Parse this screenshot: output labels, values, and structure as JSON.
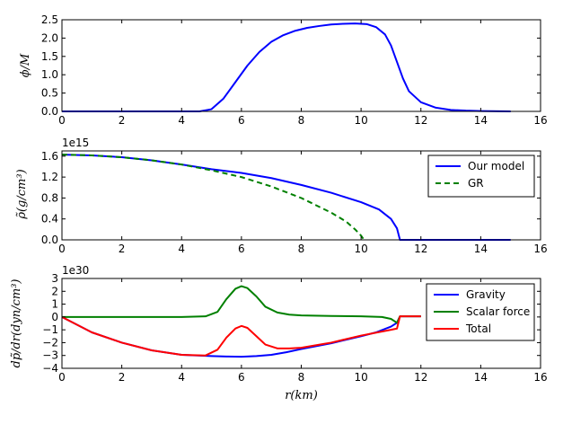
{
  "chart_data": [
    {
      "type": "line",
      "id": "phi",
      "ylabel": "ϕ/M",
      "xlim": [
        0,
        16
      ],
      "ylim": [
        0,
        2.5
      ],
      "xticks": [
        "0",
        "2",
        "4",
        "6",
        "8",
        "10",
        "12",
        "14",
        "16"
      ],
      "yticks": [
        "0.0",
        "0.5",
        "1.0",
        "1.5",
        "2.0",
        "2.5"
      ],
      "offset_text": "",
      "legend": null,
      "series": [
        {
          "color": "#0000ff",
          "dash": "solid",
          "x": [
            0,
            4.6,
            5.0,
            5.4,
            5.8,
            6.2,
            6.6,
            7.0,
            7.4,
            7.8,
            8.2,
            8.6,
            9.0,
            9.4,
            9.8,
            10.2,
            10.5,
            10.8,
            11.0,
            11.2,
            11.4,
            11.6,
            12.0,
            12.5,
            13.0,
            13.5,
            14.0,
            15.0
          ],
          "y": [
            0,
            0.0,
            0.06,
            0.35,
            0.8,
            1.25,
            1.62,
            1.9,
            2.08,
            2.2,
            2.28,
            2.33,
            2.37,
            2.39,
            2.4,
            2.38,
            2.3,
            2.1,
            1.8,
            1.35,
            0.9,
            0.55,
            0.25,
            0.1,
            0.04,
            0.02,
            0.01,
            0.0
          ]
        }
      ]
    },
    {
      "type": "line",
      "id": "rho",
      "ylabel": "ρ̃(g/cm³)",
      "xlim": [
        0,
        16
      ],
      "ylim": [
        0,
        1.7
      ],
      "xticks": [
        "0",
        "2",
        "4",
        "6",
        "8",
        "10",
        "12",
        "14",
        "16"
      ],
      "yticks": [
        "0.0",
        "0.4",
        "0.8",
        "1.2",
        "1.6"
      ],
      "offset_text": "1e15",
      "legend": "upper right",
      "series": [
        {
          "name": "Our model",
          "color": "#0000ff",
          "dash": "solid",
          "x": [
            0,
            1,
            2,
            3,
            4,
            5,
            6,
            7,
            8,
            9,
            10,
            10.6,
            11.0,
            11.2,
            11.3,
            12,
            13,
            14,
            15
          ],
          "y": [
            1.63,
            1.615,
            1.58,
            1.52,
            1.44,
            1.35,
            1.28,
            1.18,
            1.05,
            0.9,
            0.72,
            0.58,
            0.4,
            0.22,
            0.0,
            0.0,
            0.0,
            0.0,
            0.0
          ]
        },
        {
          "name": "GR",
          "color": "#008000",
          "dash": "dashed",
          "x": [
            0,
            1,
            2,
            3,
            4,
            5,
            6,
            7,
            8,
            9,
            9.5,
            9.8,
            10.0,
            10.1
          ],
          "y": [
            1.63,
            1.615,
            1.58,
            1.52,
            1.44,
            1.33,
            1.2,
            1.02,
            0.8,
            0.52,
            0.35,
            0.2,
            0.08,
            0.0
          ]
        }
      ]
    },
    {
      "type": "line",
      "id": "dpdr",
      "ylabel": "dp̃/dr(dyn/cm³)",
      "xlabel": "r(km)",
      "xlim": [
        0,
        16
      ],
      "ylim": [
        -4,
        3
      ],
      "xticks": [
        "0",
        "2",
        "4",
        "6",
        "8",
        "10",
        "12",
        "14",
        "16"
      ],
      "yticks": [
        "−4",
        "−3",
        "−2",
        "−1",
        "0",
        "1",
        "2",
        "3"
      ],
      "offset_text": "1e30",
      "legend": "upper right",
      "series": [
        {
          "name": "Gravity",
          "color": "#0000ff",
          "dash": "solid",
          "x": [
            0,
            1,
            2,
            3,
            4,
            5,
            5.5,
            6,
            6.5,
            7,
            7.5,
            8,
            9,
            10,
            10.5,
            11.0,
            11.2,
            11.3,
            12.0
          ],
          "y": [
            0,
            -1.2,
            -2.0,
            -2.6,
            -2.95,
            -3.05,
            -3.08,
            -3.1,
            -3.05,
            -2.95,
            -2.75,
            -2.5,
            -2.05,
            -1.5,
            -1.2,
            -0.75,
            -0.45,
            0.05,
            0.05
          ]
        },
        {
          "name": "Scalar force",
          "color": "#008000",
          "dash": "solid",
          "x": [
            0,
            2,
            4,
            4.8,
            5.2,
            5.5,
            5.8,
            6.0,
            6.2,
            6.5,
            6.8,
            7.2,
            7.6,
            8,
            9,
            10,
            10.7,
            11.0,
            11.2,
            11.3,
            12.0
          ],
          "y": [
            0,
            0,
            0.0,
            0.05,
            0.4,
            1.4,
            2.2,
            2.4,
            2.25,
            1.6,
            0.8,
            0.35,
            0.18,
            0.12,
            0.08,
            0.05,
            0.0,
            -0.15,
            -0.45,
            0.05,
            0.05
          ]
        },
        {
          "name": "Total",
          "color": "#ff0000",
          "dash": "solid",
          "x": [
            0,
            1,
            2,
            3,
            4,
            4.8,
            5.2,
            5.5,
            5.8,
            6.0,
            6.2,
            6.5,
            6.8,
            7.2,
            7.6,
            8,
            9,
            10,
            11.0,
            11.2,
            11.3,
            12.0
          ],
          "y": [
            0,
            -1.2,
            -2.0,
            -2.6,
            -2.95,
            -3.0,
            -2.55,
            -1.6,
            -0.9,
            -0.7,
            -0.85,
            -1.5,
            -2.15,
            -2.45,
            -2.45,
            -2.4,
            -2.0,
            -1.45,
            -1.0,
            -0.9,
            0.05,
            0.05
          ]
        }
      ]
    }
  ]
}
